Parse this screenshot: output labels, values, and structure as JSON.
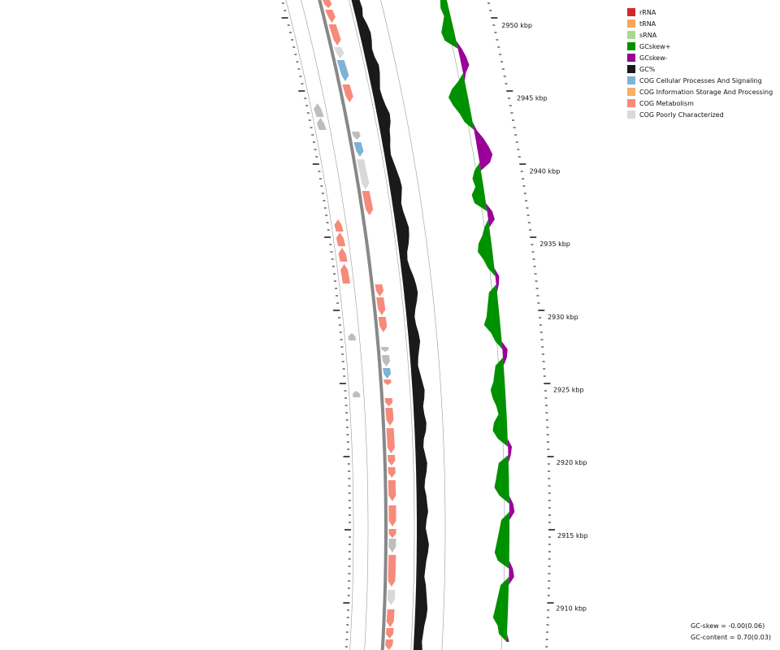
{
  "legend": [
    {
      "label": "rRNA",
      "color": "#d62728"
    },
    {
      "label": "tRNA",
      "color": "#f5a65b"
    },
    {
      "label": "sRNA",
      "color": "#a8d98f"
    },
    {
      "label": "GCskew+",
      "color": "#009100"
    },
    {
      "label": "GCskew-",
      "color": "#990099"
    },
    {
      "label": "GC%",
      "color": "#1a1a1a"
    },
    {
      "label": "COG Cellular Processes And Signaling",
      "color": "#7fb2d8"
    },
    {
      "label": "COG Information Storage And Processing",
      "color": "#f5b065"
    },
    {
      "label": "COG Metabolism",
      "color": "#f78a7a"
    },
    {
      "label": "COG Poorly Characterized",
      "color": "#d9d9d9"
    }
  ],
  "axis": {
    "ticks": [
      "2950 kbp",
      "2945 kbp",
      "2940 kbp",
      "2935 kbp",
      "2930 kbp",
      "2925 kbp",
      "2920 kbp",
      "2915 kbp",
      "2910 kbp"
    ]
  },
  "stats": {
    "gc_skew": "GC-skew = -0.00(0.06)",
    "gc_content": "GC-content = 0.70(0.03)"
  },
  "colors": {
    "backbone": "#888888",
    "track_line": "#999999",
    "gray_feature": "#bdbdbd"
  }
}
